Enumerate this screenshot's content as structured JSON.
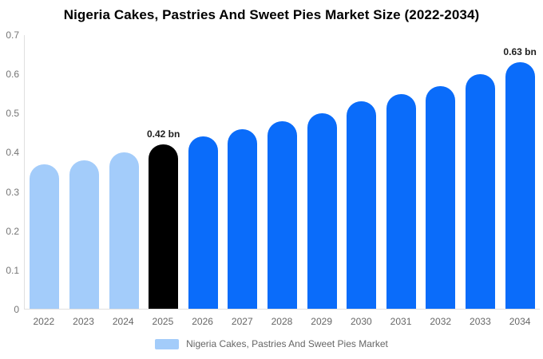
{
  "chart_data": {
    "type": "bar",
    "title": "Nigeria Cakes, Pastries And Sweet Pies Market Size (2022-2034)",
    "categories": [
      "2022",
      "2023",
      "2024",
      "2025",
      "2026",
      "2027",
      "2028",
      "2029",
      "2030",
      "2031",
      "2032",
      "2033",
      "2034"
    ],
    "values": [
      0.37,
      0.38,
      0.4,
      0.42,
      0.44,
      0.46,
      0.48,
      0.5,
      0.53,
      0.55,
      0.57,
      0.6,
      0.63
    ],
    "unit": "bn",
    "xlabel": "",
    "ylabel": "",
    "ylim": [
      0,
      0.7
    ],
    "yticks": [
      0,
      0.1,
      0.2,
      0.3,
      0.4,
      0.5,
      0.6,
      0.7
    ],
    "ytick_labels": [
      "0",
      "0.1",
      "0.2",
      "0.3",
      "0.4",
      "0.5",
      "0.6",
      "0.7"
    ],
    "grid": false,
    "legend_position": "bottom",
    "legend": "Nigeria Cakes, Pastries And Sweet Pies Market",
    "annotations": [
      {
        "category": "2025",
        "text": "0.42 bn"
      },
      {
        "category": "2034",
        "text": "0.63 bn"
      }
    ],
    "bar_segments": [
      "historical",
      "historical",
      "historical",
      "highlight",
      "forecast",
      "forecast",
      "forecast",
      "forecast",
      "forecast",
      "forecast",
      "forecast",
      "forecast",
      "forecast"
    ],
    "palette": {
      "historical": "#a3ccfa",
      "highlight": "#000000",
      "forecast": "#0a6cfa"
    },
    "axis_line_color": "#e0e0e0",
    "tick_label_color": "#757575",
    "annotation_color": "#1f1f1f"
  }
}
